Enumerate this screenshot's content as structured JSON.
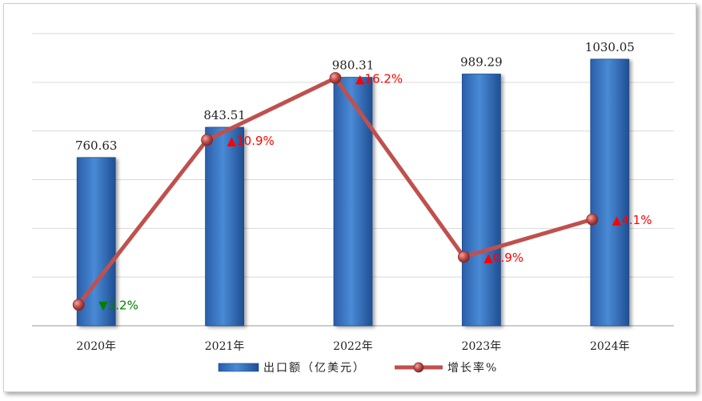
{
  "chart_data": {
    "type": "bar",
    "categories": [
      "2020年",
      "2021年",
      "2022年",
      "2023年",
      "2024年"
    ],
    "series": [
      {
        "name": "出口额（亿美元）",
        "type": "bar",
        "values": [
          760.63,
          843.51,
          980.31,
          989.29,
          1030.05
        ],
        "value_labels": [
          "760.63",
          "843.51",
          "980.31",
          "989.29",
          "1030.05"
        ],
        "color": "#3a78c8"
      },
      {
        "name": "增长率%",
        "type": "line",
        "values": [
          -3.2,
          10.9,
          16.2,
          0.9,
          4.1
        ],
        "value_labels": [
          "▼3.2%",
          "▲10.9%",
          "▲16.2%",
          "▲0.9%",
          "▲4.1%"
        ],
        "color": "#c0504d"
      }
    ],
    "bar_axis_range": [
      300,
      1100
    ],
    "line_axis_range": [
      -5,
      20
    ],
    "label_colors": {
      "up": "#ff0000",
      "down": "#008000"
    },
    "grid": true,
    "legend_position": "bottom"
  }
}
